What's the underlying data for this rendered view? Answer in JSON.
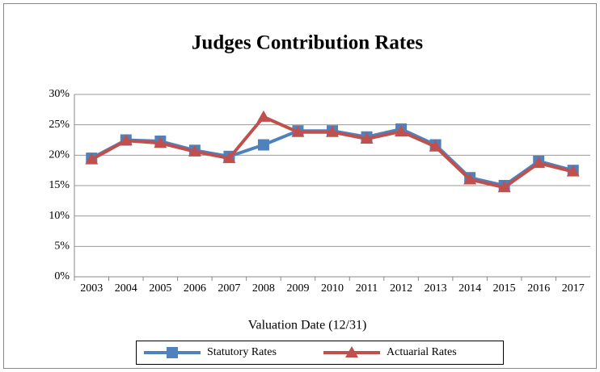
{
  "chart_data": {
    "type": "line",
    "title": "Judges Contribution Rates",
    "x_label": "Valuation Date (12/31)",
    "categories": [
      "2003",
      "2004",
      "2005",
      "2006",
      "2007",
      "2008",
      "2009",
      "2010",
      "2011",
      "2012",
      "2013",
      "2014",
      "2015",
      "2016",
      "2017"
    ],
    "series": [
      {
        "name": "Statutory Rates",
        "color": "#4f81bd",
        "marker": "square",
        "values": [
          19.5,
          22.5,
          22.3,
          20.8,
          19.8,
          21.7,
          24.0,
          24.0,
          23.0,
          24.3,
          21.7,
          16.3,
          15.0,
          19.0,
          17.5
        ]
      },
      {
        "name": "Actuarial Rates",
        "color": "#c0504d",
        "marker": "triangle",
        "values": [
          19.3,
          22.4,
          22.0,
          20.6,
          19.5,
          26.3,
          23.8,
          23.8,
          22.7,
          23.9,
          21.4,
          16.0,
          14.7,
          18.7,
          17.3
        ]
      }
    ],
    "ylim": [
      0,
      30
    ],
    "yticks": [
      {
        "value": 0,
        "label": "0%"
      },
      {
        "value": 5,
        "label": "5%"
      },
      {
        "value": 10,
        "label": "10%"
      },
      {
        "value": 15,
        "label": "15%"
      },
      {
        "value": 20,
        "label": "20%"
      },
      {
        "value": 25,
        "label": "25%"
      },
      {
        "value": 30,
        "label": "30%"
      }
    ],
    "grid": true,
    "legend": "bottom"
  }
}
